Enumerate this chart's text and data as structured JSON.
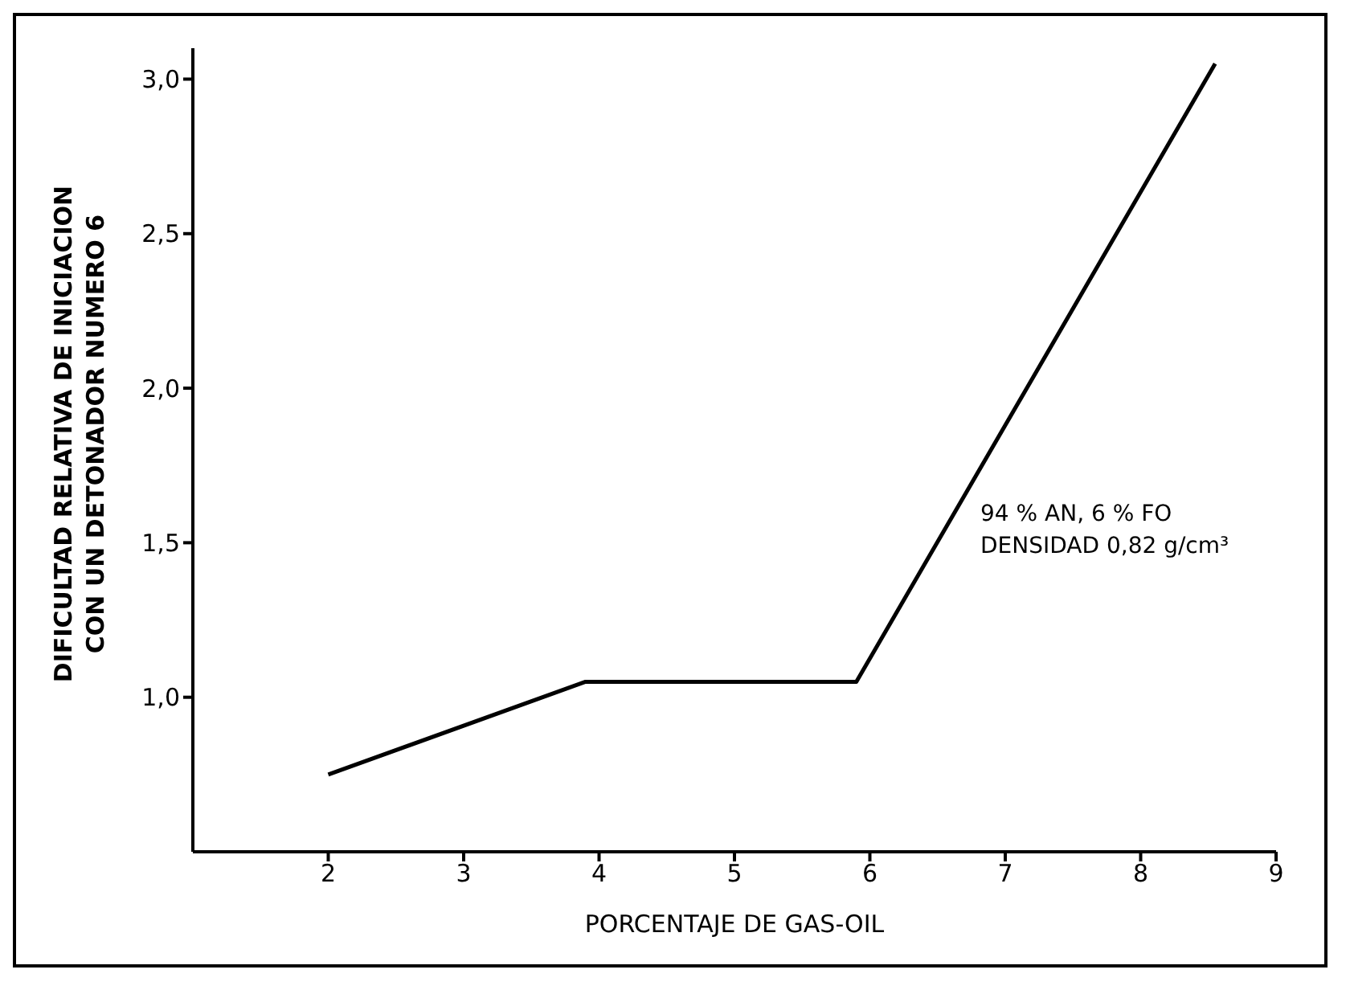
{
  "chart_data": {
    "type": "line",
    "xlabel": "PORCENTAJE DE GAS-OIL",
    "ylabel": "DIFICULTAD RELATIVA DE INICIACION\nCON UN DETONADOR NUMERO 6",
    "x": [
      2,
      3.9,
      5.9,
      8.55
    ],
    "series": [
      {
        "color": "#000000",
        "values": [
          0.75,
          1.05,
          1.05,
          3.05
        ]
      }
    ],
    "xlim": [
      1,
      9
    ],
    "xticks": [
      2,
      3,
      4,
      5,
      6,
      7,
      8,
      9
    ],
    "ylim": [
      0.5,
      3.1
    ],
    "yticks": [
      {
        "value": 1,
        "label": "1,0"
      },
      {
        "value": 1.5,
        "label": "1,5"
      },
      {
        "value": 2,
        "label": "2,0"
      },
      {
        "value": 2.5,
        "label": "2,5"
      },
      {
        "value": 3,
        "label": "3,0"
      }
    ],
    "annotations": [
      "94 % AN, 6 % FO\nDENSIDAD 0,82 g/cm³"
    ],
    "marker": "none",
    "line_style": "solid",
    "grid": false
  }
}
